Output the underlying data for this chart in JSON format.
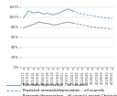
{
  "x_labels": [
    "2012/13",
    "2013/14",
    "2014/15",
    "2015/16",
    "2016/17",
    "2017/18",
    "2018/19",
    "2019/20",
    "2020/21",
    "2021/22",
    "2022/23",
    "2023/24",
    "2024/25",
    "2025/26",
    "2026/27",
    "2027/28",
    "2028/29",
    "2029/30",
    "2030/31"
  ],
  "actual_split": 10,
  "series1_actual": [
    98,
    112,
    108,
    110,
    106,
    107,
    104,
    107,
    112,
    116,
    112,
    null,
    null,
    null,
    null,
    null,
    null,
    null,
    null
  ],
  "series1_predicted": [
    null,
    null,
    null,
    null,
    null,
    null,
    null,
    null,
    null,
    null,
    112,
    108,
    106,
    104,
    103,
    101,
    99,
    98,
    97
  ],
  "series2_actual": [
    78,
    82,
    85,
    90,
    88,
    87,
    84,
    85,
    88,
    90,
    88,
    null,
    null,
    null,
    null,
    null,
    null,
    null,
    null
  ],
  "series2_predicted": [
    null,
    null,
    null,
    null,
    null,
    null,
    null,
    null,
    null,
    null,
    88,
    86,
    84,
    82,
    80,
    79,
    78,
    77,
    76
  ],
  "ylim": [
    0,
    130
  ],
  "yticks": [
    0,
    20,
    40,
    60,
    80,
    100,
    120
  ],
  "ytick_labels": [
    "0%",
    "20%",
    "40%",
    "60%",
    "80%",
    "100%",
    "120%"
  ],
  "color1": "#6fa8d0",
  "color2": "#999999",
  "line_width": 0.7,
  "legend_labels": [
    "Renewals/depreciation – all councils",
    "Predicted renewals/depreciation – all councils",
    "Renewals/depreciation – all councils except Christchurch City Council",
    "Predicted renewals/depreciation – all councils except Christchurch\nCity Council"
  ],
  "bg_color": "#ffffff",
  "grid_color": "#d0d0d0"
}
